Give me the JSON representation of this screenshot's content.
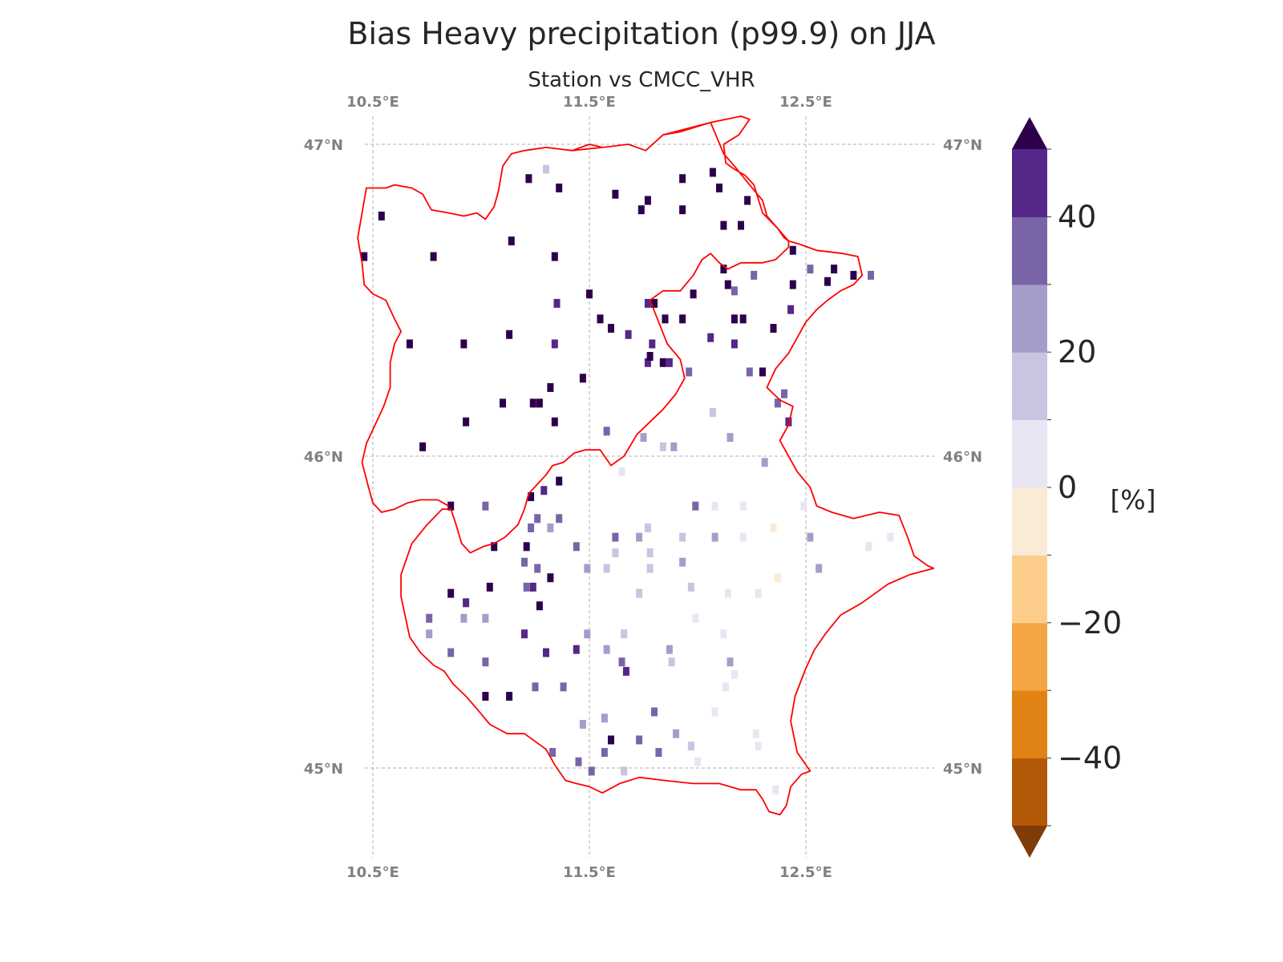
{
  "title": "Bias Heavy precipitation (p99.9) on JJA",
  "subtitle": "Station vs CMCC_VHR",
  "map": {
    "lon_ticks": [
      "10.5°E",
      "11.5°E",
      "12.5°E"
    ],
    "lon_values": [
      10.5,
      11.5,
      12.5
    ],
    "lat_ticks": [
      "45°N",
      "46°N",
      "47°N"
    ],
    "lat_values": [
      45,
      46,
      47
    ],
    "grid_color": "#b0b0b0",
    "border_color": "#ff0000"
  },
  "colorbar": {
    "unit": "[%]",
    "tick_labels": [
      "40",
      "20",
      "0",
      "−20",
      "−40"
    ],
    "tick_values": [
      40,
      20,
      0,
      -20,
      -40
    ],
    "levels": [
      -50,
      -40,
      -30,
      -20,
      -10,
      0,
      10,
      20,
      30,
      40,
      50
    ],
    "colors": [
      "#b35806",
      "#e08214",
      "#f4a545",
      "#fdce8b",
      "#faebd7",
      "#e8e6f2",
      "#c8c5e1",
      "#a39ec9",
      "#7a64a8",
      "#542788"
    ],
    "under_color": "#7f3b08",
    "over_color": "#2d004b",
    "extend": "both"
  },
  "chart_data": {
    "type": "scatter",
    "title": "Bias Heavy precipitation (p99.9) on JJA",
    "subtitle": "Station vs CMCC_VHR",
    "colorbar_label": "[%]",
    "value_range": [
      -50,
      50
    ],
    "points": [
      {
        "lon": 10.54,
        "lat": 46.77,
        "bias": 55
      },
      {
        "lon": 10.46,
        "lat": 46.64,
        "bias": 55
      },
      {
        "lon": 10.78,
        "lat": 46.64,
        "bias": 55
      },
      {
        "lon": 11.14,
        "lat": 46.69,
        "bias": 55
      },
      {
        "lon": 11.34,
        "lat": 46.64,
        "bias": 55
      },
      {
        "lon": 11.22,
        "lat": 46.89,
        "bias": 55
      },
      {
        "lon": 11.36,
        "lat": 46.86,
        "bias": 55
      },
      {
        "lon": 11.3,
        "lat": 46.92,
        "bias": 15
      },
      {
        "lon": 11.62,
        "lat": 46.84,
        "bias": 55
      },
      {
        "lon": 11.77,
        "lat": 46.82,
        "bias": 55
      },
      {
        "lon": 11.74,
        "lat": 46.79,
        "bias": 55
      },
      {
        "lon": 11.93,
        "lat": 46.89,
        "bias": 55
      },
      {
        "lon": 11.93,
        "lat": 46.79,
        "bias": 55
      },
      {
        "lon": 12.07,
        "lat": 46.91,
        "bias": 55
      },
      {
        "lon": 12.1,
        "lat": 46.86,
        "bias": 55
      },
      {
        "lon": 12.23,
        "lat": 46.82,
        "bias": 55
      },
      {
        "lon": 12.12,
        "lat": 46.74,
        "bias": 55
      },
      {
        "lon": 12.2,
        "lat": 46.74,
        "bias": 55
      },
      {
        "lon": 12.44,
        "lat": 46.66,
        "bias": 55
      },
      {
        "lon": 12.12,
        "lat": 46.6,
        "bias": 55
      },
      {
        "lon": 12.14,
        "lat": 46.55,
        "bias": 55
      },
      {
        "lon": 12.17,
        "lat": 46.53,
        "bias": 30
      },
      {
        "lon": 12.26,
        "lat": 46.58,
        "bias": 35
      },
      {
        "lon": 12.44,
        "lat": 46.55,
        "bias": 55
      },
      {
        "lon": 12.52,
        "lat": 46.6,
        "bias": 35
      },
      {
        "lon": 12.6,
        "lat": 46.56,
        "bias": 55
      },
      {
        "lon": 12.63,
        "lat": 46.6,
        "bias": 55
      },
      {
        "lon": 12.72,
        "lat": 46.58,
        "bias": 55
      },
      {
        "lon": 12.8,
        "lat": 46.58,
        "bias": 35
      },
      {
        "lon": 11.5,
        "lat": 46.52,
        "bias": 55
      },
      {
        "lon": 11.8,
        "lat": 46.49,
        "bias": 55
      },
      {
        "lon": 11.77,
        "lat": 46.49,
        "bias": 45
      },
      {
        "lon": 11.85,
        "lat": 46.44,
        "bias": 55
      },
      {
        "lon": 11.93,
        "lat": 46.44,
        "bias": 55
      },
      {
        "lon": 11.98,
        "lat": 46.52,
        "bias": 55
      },
      {
        "lon": 12.17,
        "lat": 46.44,
        "bias": 55
      },
      {
        "lon": 12.21,
        "lat": 46.44,
        "bias": 55
      },
      {
        "lon": 12.35,
        "lat": 46.41,
        "bias": 55
      },
      {
        "lon": 12.43,
        "lat": 46.47,
        "bias": 45
      },
      {
        "lon": 12.06,
        "lat": 46.38,
        "bias": 45
      },
      {
        "lon": 12.17,
        "lat": 46.36,
        "bias": 45
      },
      {
        "lon": 11.79,
        "lat": 46.36,
        "bias": 45
      },
      {
        "lon": 11.35,
        "lat": 46.49,
        "bias": 45
      },
      {
        "lon": 11.55,
        "lat": 46.44,
        "bias": 55
      },
      {
        "lon": 11.6,
        "lat": 46.41,
        "bias": 55
      },
      {
        "lon": 11.68,
        "lat": 46.39,
        "bias": 45
      },
      {
        "lon": 11.13,
        "lat": 46.39,
        "bias": 55
      },
      {
        "lon": 10.67,
        "lat": 46.36,
        "bias": 55
      },
      {
        "lon": 10.92,
        "lat": 46.36,
        "bias": 55
      },
      {
        "lon": 11.34,
        "lat": 46.36,
        "bias": 45
      },
      {
        "lon": 11.77,
        "lat": 46.3,
        "bias": 45
      },
      {
        "lon": 11.78,
        "lat": 46.32,
        "bias": 55
      },
      {
        "lon": 11.84,
        "lat": 46.3,
        "bias": 55
      },
      {
        "lon": 11.87,
        "lat": 46.3,
        "bias": 45
      },
      {
        "lon": 11.96,
        "lat": 46.27,
        "bias": 35
      },
      {
        "lon": 12.24,
        "lat": 46.27,
        "bias": 35
      },
      {
        "lon": 12.3,
        "lat": 46.27,
        "bias": 55
      },
      {
        "lon": 11.47,
        "lat": 46.25,
        "bias": 55
      },
      {
        "lon": 11.32,
        "lat": 46.22,
        "bias": 55
      },
      {
        "lon": 11.1,
        "lat": 46.17,
        "bias": 55
      },
      {
        "lon": 11.24,
        "lat": 46.17,
        "bias": 55
      },
      {
        "lon": 11.27,
        "lat": 46.17,
        "bias": 55
      },
      {
        "lon": 11.34,
        "lat": 46.11,
        "bias": 55
      },
      {
        "lon": 10.93,
        "lat": 46.11,
        "bias": 55
      },
      {
        "lon": 10.73,
        "lat": 46.03,
        "bias": 55
      },
      {
        "lon": 12.37,
        "lat": 46.17,
        "bias": 35
      },
      {
        "lon": 12.4,
        "lat": 46.2,
        "bias": 35
      },
      {
        "lon": 12.42,
        "lat": 46.11,
        "bias": 45
      },
      {
        "lon": 12.07,
        "lat": 46.14,
        "bias": 15
      },
      {
        "lon": 11.58,
        "lat": 46.08,
        "bias": 35
      },
      {
        "lon": 11.75,
        "lat": 46.06,
        "bias": 25
      },
      {
        "lon": 11.84,
        "lat": 46.03,
        "bias": 15
      },
      {
        "lon": 11.89,
        "lat": 46.03,
        "bias": 25
      },
      {
        "lon": 12.15,
        "lat": 46.06,
        "bias": 25
      },
      {
        "lon": 12.31,
        "lat": 45.98,
        "bias": 25
      },
      {
        "lon": 11.36,
        "lat": 45.92,
        "bias": 55
      },
      {
        "lon": 11.29,
        "lat": 45.89,
        "bias": 45
      },
      {
        "lon": 11.23,
        "lat": 45.87,
        "bias": 55
      },
      {
        "lon": 10.86,
        "lat": 45.84,
        "bias": 55
      },
      {
        "lon": 11.02,
        "lat": 45.84,
        "bias": 35
      },
      {
        "lon": 11.65,
        "lat": 45.95,
        "bias": 5
      },
      {
        "lon": 11.99,
        "lat": 45.84,
        "bias": 35
      },
      {
        "lon": 12.08,
        "lat": 45.84,
        "bias": 5
      },
      {
        "lon": 12.21,
        "lat": 45.84,
        "bias": 5
      },
      {
        "lon": 12.49,
        "lat": 45.84,
        "bias": 5
      },
      {
        "lon": 12.35,
        "lat": 45.77,
        "bias": -5
      },
      {
        "lon": 11.26,
        "lat": 45.8,
        "bias": 35
      },
      {
        "lon": 11.36,
        "lat": 45.8,
        "bias": 35
      },
      {
        "lon": 11.32,
        "lat": 45.77,
        "bias": 25
      },
      {
        "lon": 11.23,
        "lat": 45.77,
        "bias": 35
      },
      {
        "lon": 11.62,
        "lat": 45.74,
        "bias": 35
      },
      {
        "lon": 11.73,
        "lat": 45.74,
        "bias": 25
      },
      {
        "lon": 11.77,
        "lat": 45.77,
        "bias": 15
      },
      {
        "lon": 11.93,
        "lat": 45.74,
        "bias": 15
      },
      {
        "lon": 12.08,
        "lat": 45.74,
        "bias": 25
      },
      {
        "lon": 12.21,
        "lat": 45.74,
        "bias": 5
      },
      {
        "lon": 12.52,
        "lat": 45.74,
        "bias": 25
      },
      {
        "lon": 12.79,
        "lat": 45.71,
        "bias": 5
      },
      {
        "lon": 12.89,
        "lat": 45.74,
        "bias": 5
      },
      {
        "lon": 11.06,
        "lat": 45.71,
        "bias": 55
      },
      {
        "lon": 11.21,
        "lat": 45.71,
        "bias": 55
      },
      {
        "lon": 11.44,
        "lat": 45.71,
        "bias": 35
      },
      {
        "lon": 11.62,
        "lat": 45.69,
        "bias": 15
      },
      {
        "lon": 11.78,
        "lat": 45.69,
        "bias": 15
      },
      {
        "lon": 11.93,
        "lat": 45.66,
        "bias": 25
      },
      {
        "lon": 11.2,
        "lat": 45.66,
        "bias": 35
      },
      {
        "lon": 11.26,
        "lat": 45.64,
        "bias": 35
      },
      {
        "lon": 11.32,
        "lat": 45.61,
        "bias": 55
      },
      {
        "lon": 11.49,
        "lat": 45.64,
        "bias": 25
      },
      {
        "lon": 11.58,
        "lat": 45.64,
        "bias": 15
      },
      {
        "lon": 11.78,
        "lat": 45.64,
        "bias": 15
      },
      {
        "lon": 12.56,
        "lat": 45.64,
        "bias": 25
      },
      {
        "lon": 12.37,
        "lat": 45.61,
        "bias": -5
      },
      {
        "lon": 11.04,
        "lat": 45.58,
        "bias": 55
      },
      {
        "lon": 11.21,
        "lat": 45.58,
        "bias": 35
      },
      {
        "lon": 11.24,
        "lat": 45.58,
        "bias": 45
      },
      {
        "lon": 11.27,
        "lat": 45.52,
        "bias": 55
      },
      {
        "lon": 10.86,
        "lat": 45.56,
        "bias": 55
      },
      {
        "lon": 10.93,
        "lat": 45.53,
        "bias": 45
      },
      {
        "lon": 11.73,
        "lat": 45.56,
        "bias": 15
      },
      {
        "lon": 11.97,
        "lat": 45.58,
        "bias": 15
      },
      {
        "lon": 12.14,
        "lat": 45.56,
        "bias": 5
      },
      {
        "lon": 12.28,
        "lat": 45.56,
        "bias": 5
      },
      {
        "lon": 10.76,
        "lat": 45.48,
        "bias": 35
      },
      {
        "lon": 10.92,
        "lat": 45.48,
        "bias": 25
      },
      {
        "lon": 11.02,
        "lat": 45.48,
        "bias": 25
      },
      {
        "lon": 11.99,
        "lat": 45.48,
        "bias": 5
      },
      {
        "lon": 10.76,
        "lat": 45.43,
        "bias": 25
      },
      {
        "lon": 11.2,
        "lat": 45.43,
        "bias": 45
      },
      {
        "lon": 11.49,
        "lat": 45.43,
        "bias": 25
      },
      {
        "lon": 11.66,
        "lat": 45.43,
        "bias": 15
      },
      {
        "lon": 12.12,
        "lat": 45.43,
        "bias": 5
      },
      {
        "lon": 11.44,
        "lat": 45.38,
        "bias": 45
      },
      {
        "lon": 11.58,
        "lat": 45.38,
        "bias": 25
      },
      {
        "lon": 11.87,
        "lat": 45.38,
        "bias": 25
      },
      {
        "lon": 10.86,
        "lat": 45.37,
        "bias": 35
      },
      {
        "lon": 11.3,
        "lat": 45.37,
        "bias": 45
      },
      {
        "lon": 11.02,
        "lat": 45.34,
        "bias": 35
      },
      {
        "lon": 11.65,
        "lat": 45.34,
        "bias": 35
      },
      {
        "lon": 11.67,
        "lat": 45.31,
        "bias": 45
      },
      {
        "lon": 11.88,
        "lat": 45.34,
        "bias": 15
      },
      {
        "lon": 12.15,
        "lat": 45.34,
        "bias": 25
      },
      {
        "lon": 12.17,
        "lat": 45.3,
        "bias": 5
      },
      {
        "lon": 11.25,
        "lat": 45.26,
        "bias": 35
      },
      {
        "lon": 11.38,
        "lat": 45.26,
        "bias": 35
      },
      {
        "lon": 12.13,
        "lat": 45.26,
        "bias": 5
      },
      {
        "lon": 11.02,
        "lat": 45.23,
        "bias": 55
      },
      {
        "lon": 11.13,
        "lat": 45.23,
        "bias": 55
      },
      {
        "lon": 11.47,
        "lat": 45.14,
        "bias": 25
      },
      {
        "lon": 11.57,
        "lat": 45.16,
        "bias": 25
      },
      {
        "lon": 11.8,
        "lat": 45.18,
        "bias": 35
      },
      {
        "lon": 12.08,
        "lat": 45.18,
        "bias": 5
      },
      {
        "lon": 11.6,
        "lat": 45.09,
        "bias": 55
      },
      {
        "lon": 11.73,
        "lat": 45.09,
        "bias": 35
      },
      {
        "lon": 11.9,
        "lat": 45.11,
        "bias": 25
      },
      {
        "lon": 11.97,
        "lat": 45.07,
        "bias": 15
      },
      {
        "lon": 12.27,
        "lat": 45.11,
        "bias": 5
      },
      {
        "lon": 11.33,
        "lat": 45.05,
        "bias": 35
      },
      {
        "lon": 11.45,
        "lat": 45.02,
        "bias": 35
      },
      {
        "lon": 11.57,
        "lat": 45.05,
        "bias": 35
      },
      {
        "lon": 11.82,
        "lat": 45.05,
        "bias": 35
      },
      {
        "lon": 11.51,
        "lat": 44.99,
        "bias": 35
      },
      {
        "lon": 11.66,
        "lat": 44.99,
        "bias": 15
      },
      {
        "lon": 12.0,
        "lat": 45.02,
        "bias": 5
      },
      {
        "lon": 12.28,
        "lat": 45.07,
        "bias": 5
      },
      {
        "lon": 12.36,
        "lat": 44.93,
        "bias": 5
      }
    ]
  }
}
